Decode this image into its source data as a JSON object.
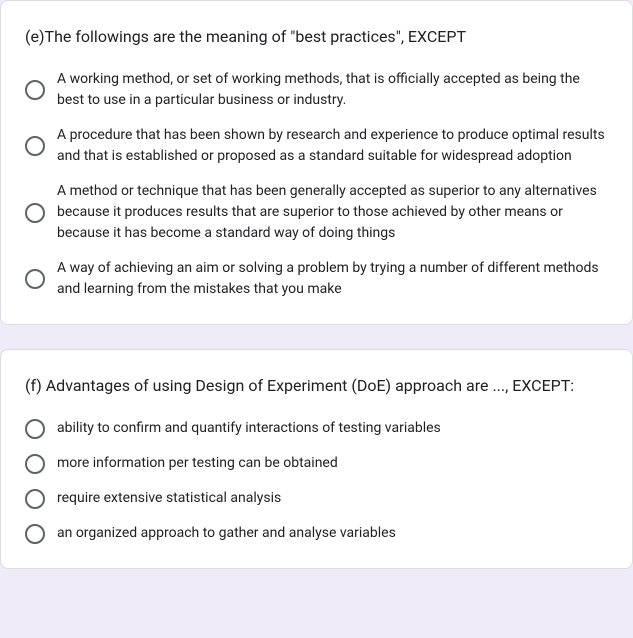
{
  "question_e": {
    "title": "(e)The followings are the meaning of \"best practices\", EXCEPT",
    "options": [
      "A working method, or set of working methods, that is officially accepted as being the best to use in a particular business or industry.",
      "A procedure that has been shown by research and experience to produce optimal results and that is established or proposed as a standard suitable for widespread adoption",
      "A method or technique that has been generally accepted as superior to any alternatives because it produces results that are superior to those achieved by other means or because it has become a standard way of doing things",
      "A way of achieving an aim or solving a problem by trying a number of different methods and learning from the mistakes that you make"
    ]
  },
  "question_f": {
    "title": "(f) Advantages of using Design of Experiment (DoE) approach are ..., EXCEPT:",
    "options": [
      "ability to confirm and quantify interactions of testing variables",
      "more information per testing can be obtained",
      "require extensive statistical analysis",
      "an organized approach to gather and analyse variables"
    ]
  },
  "styling": {
    "card_bg": "#ffffff",
    "card_border": "#dadce0",
    "page_bg": "#f0ebf8",
    "radio_border": "#5f6368",
    "title_fontsize": 16,
    "option_fontsize": 14,
    "text_color": "#202124"
  }
}
